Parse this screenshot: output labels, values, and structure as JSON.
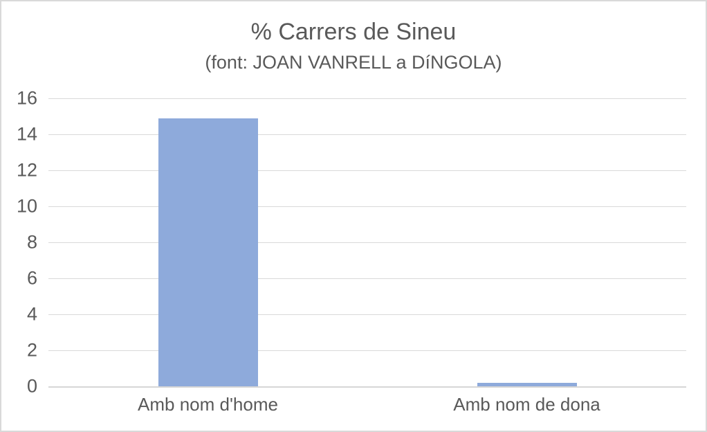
{
  "chart_data": {
    "type": "bar",
    "title": "% Carrers de Sineu",
    "subtitle": "(font: JOAN VANRELL a DíNGOLA)",
    "categories": [
      "Amb nom d'home",
      "Amb nom de dona"
    ],
    "values": [
      14.9,
      0.2
    ],
    "yticks": [
      0,
      2,
      4,
      6,
      8,
      10,
      12,
      14,
      16
    ],
    "ylim": [
      0,
      16
    ],
    "xlabel": "",
    "ylabel": "",
    "legend": "none",
    "grid": "horizontal",
    "colors": {
      "bar": "#8EAADB",
      "text": "#595959",
      "gridline": "#D9D9D9",
      "axis_line": "#D6D6D6",
      "frame_border": "#D9D9D9",
      "background": "#FFFFFF"
    }
  }
}
